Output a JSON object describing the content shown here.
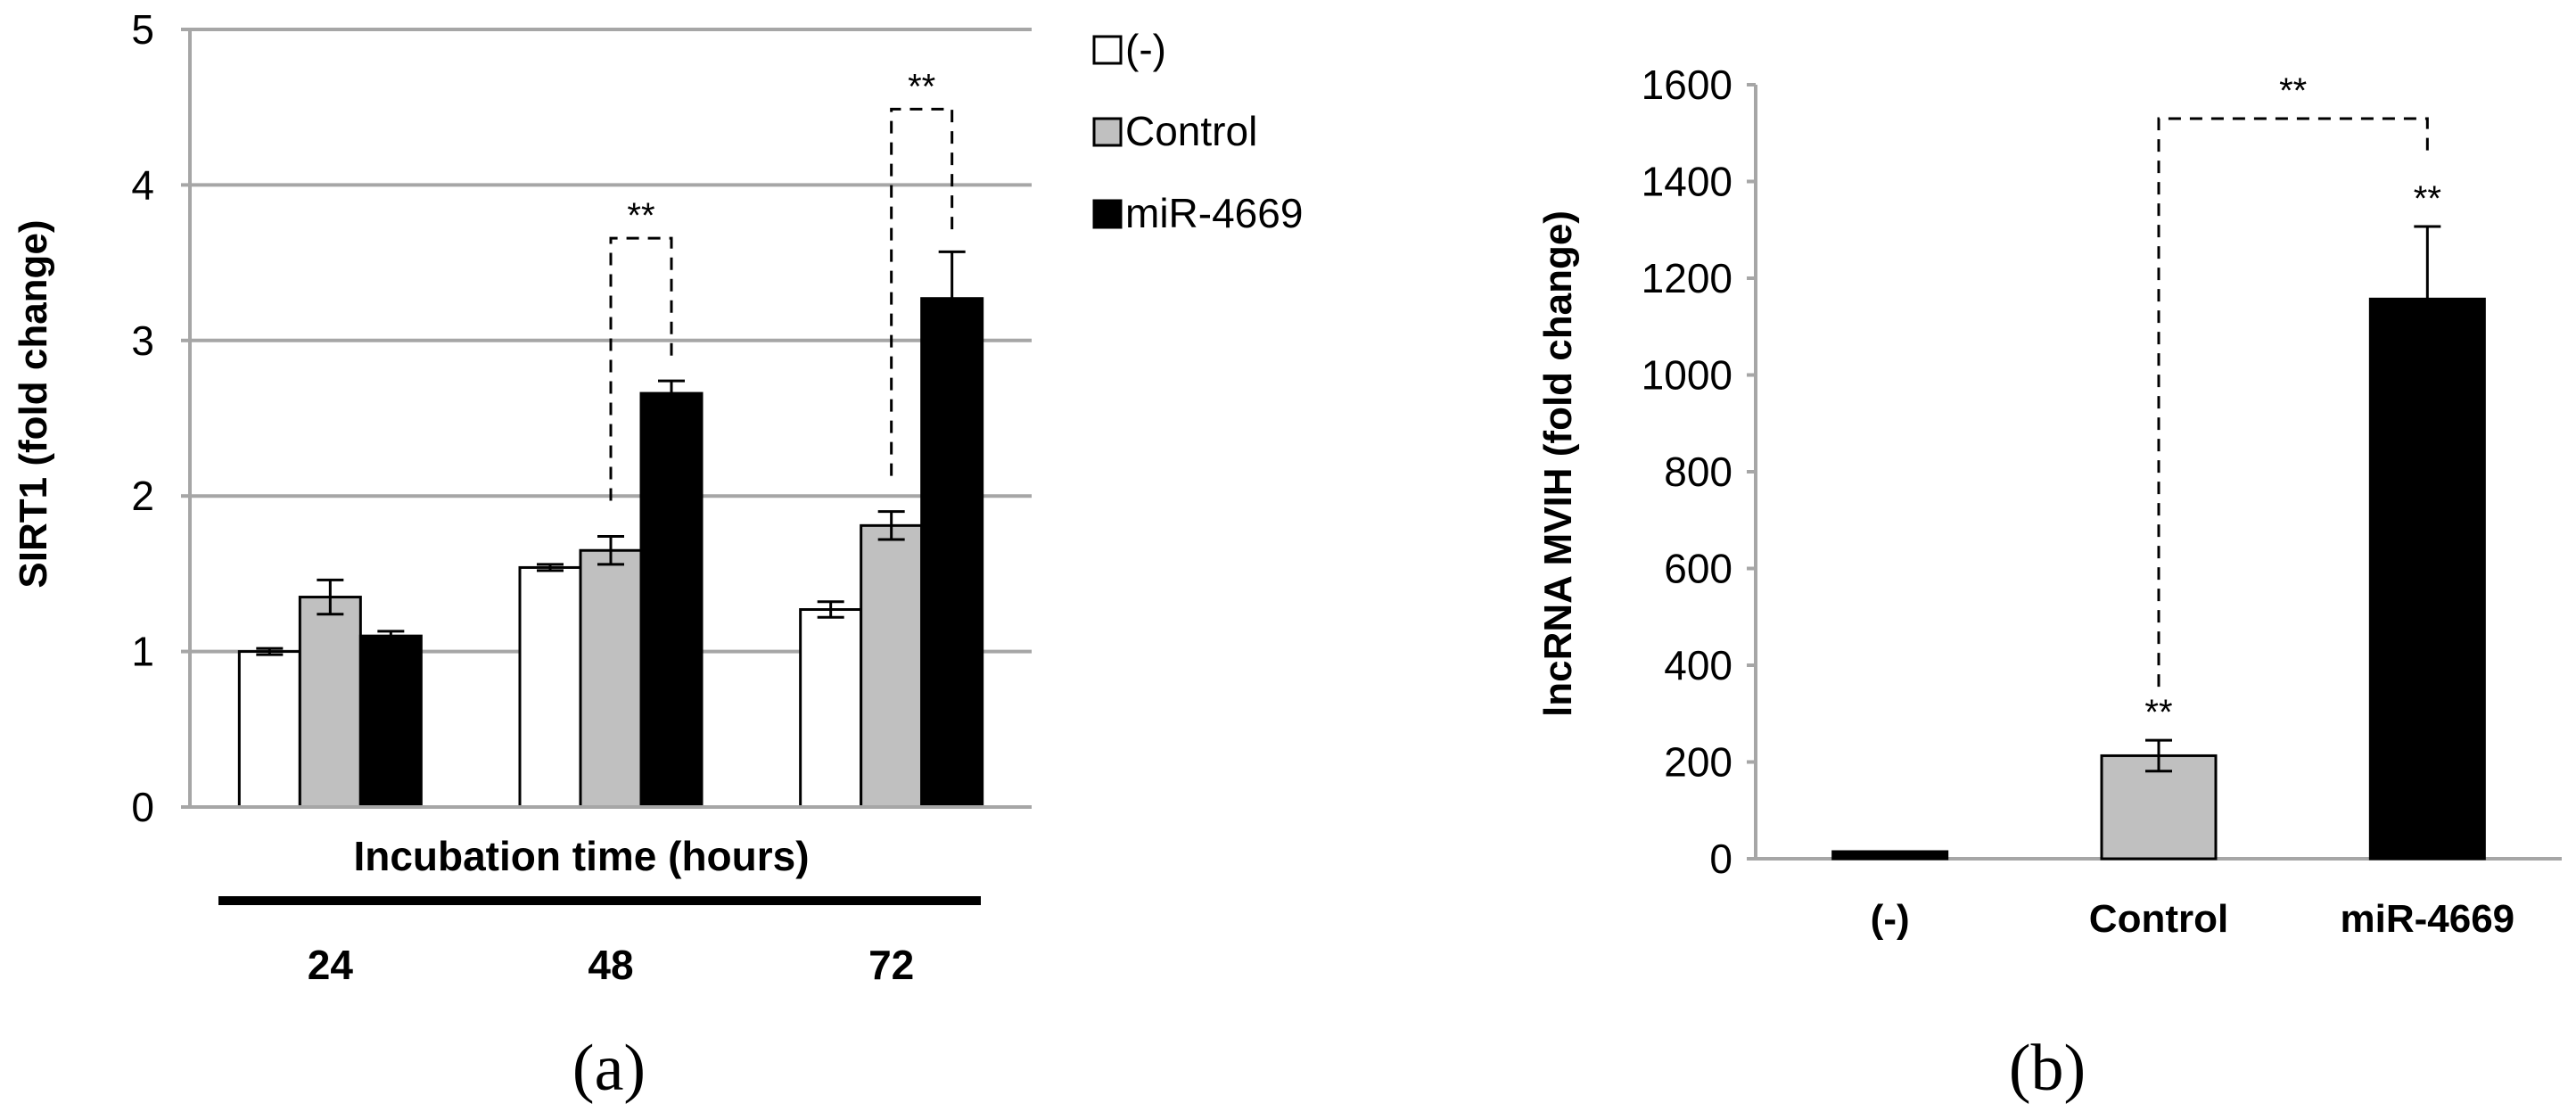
{
  "colors": {
    "none": "#ffffff",
    "control": "#c0c0c0",
    "mir": "#000000",
    "grid": "#a6a6a6",
    "stroke": "#000000"
  },
  "chart_data": [
    {
      "panel": "a",
      "panel_label": "(a)",
      "type": "bar",
      "categories": [
        "24",
        "48",
        "72"
      ],
      "xlabel": "Incubation time (hours)",
      "ylabel": "SIRT1 (fold change)",
      "ylim": [
        0,
        5
      ],
      "yticks": [
        "0",
        "1",
        "2",
        "3",
        "4",
        "5"
      ],
      "grid": true,
      "legend_position": "top-right",
      "series": [
        {
          "name": "(-)",
          "color_key": "none",
          "values": [
            1.0,
            1.54,
            1.27
          ],
          "errors": [
            0.02,
            0.02,
            0.05
          ]
        },
        {
          "name": "Control",
          "color_key": "control",
          "values": [
            1.35,
            1.65,
            1.81
          ],
          "errors": [
            0.11,
            0.09,
            0.09
          ]
        },
        {
          "name": "miR-4669",
          "color_key": "mir",
          "values": [
            1.1,
            2.66,
            3.27
          ],
          "errors": [
            0.03,
            0.08,
            0.3
          ]
        }
      ],
      "significance": [
        {
          "label": "**",
          "category": "48",
          "from_series": "Control",
          "to_series": "miR-4669"
        },
        {
          "label": "**",
          "category": "72",
          "from_series": "Control",
          "to_series": "miR-4669"
        }
      ]
    },
    {
      "panel": "b",
      "panel_label": "(b)",
      "type": "bar",
      "categories": [
        "(-)",
        "Control",
        "miR-4669"
      ],
      "xlabel": "",
      "ylabel": "lncRNA MVIH (fold change)",
      "ylim": [
        0,
        1600
      ],
      "yticks": [
        "0",
        "200",
        "400",
        "600",
        "800",
        "1000",
        "1200",
        "1400",
        "1600"
      ],
      "grid": false,
      "values": [
        1,
        213,
        1157
      ],
      "errors": [
        1,
        32,
        150
      ],
      "color_keys": [
        "mir",
        "control",
        "mir"
      ],
      "bar_labels": [
        "",
        "**",
        "**"
      ],
      "significance": [
        {
          "label": "**",
          "from": "Control",
          "to": "miR-4669"
        }
      ]
    }
  ]
}
